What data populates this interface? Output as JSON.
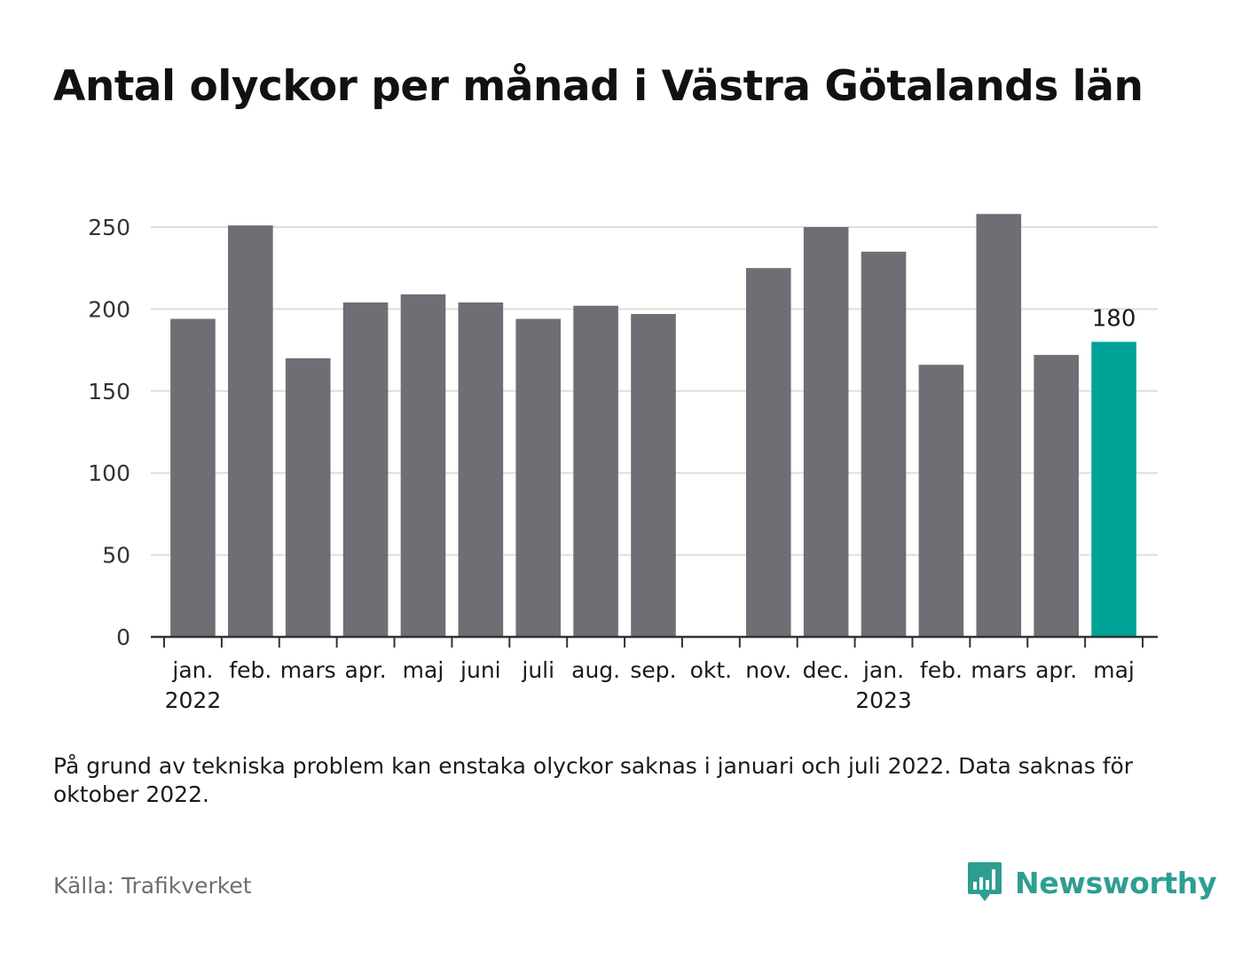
{
  "title": "Antal olyckor per månad i Västra Götalands län",
  "note": "På grund av tekniska problem kan enstaka olyckor saknas i januari och juli 2022. Data saknas för oktober 2022.",
  "source": "Källa: Trafikverket",
  "brand": {
    "name": "Newsworthy",
    "icon": "newsworthy-logo-icon",
    "color": "#2e9e92"
  },
  "chart_data": {
    "type": "bar",
    "categories": [
      "jan.",
      "feb.",
      "mars",
      "apr.",
      "maj",
      "juni",
      "juli",
      "aug.",
      "sep.",
      "okt.",
      "nov.",
      "dec.",
      "jan.",
      "feb.",
      "mars",
      "apr.",
      "maj"
    ],
    "year_labels": [
      {
        "index": 0,
        "label": "2022"
      },
      {
        "index": 12,
        "label": "2023"
      }
    ],
    "values": [
      194,
      251,
      170,
      204,
      209,
      204,
      194,
      202,
      197,
      null,
      225,
      250,
      235,
      166,
      258,
      172,
      180
    ],
    "highlight_index": 16,
    "highlight_label": "180",
    "yticks": [
      0,
      50,
      100,
      150,
      200,
      250
    ],
    "ylim": [
      0,
      265
    ],
    "grid": true,
    "colors": {
      "bar": "#6f6e74",
      "highlight": "#00a398",
      "grid": "#dedede",
      "axis": "#333333"
    }
  }
}
